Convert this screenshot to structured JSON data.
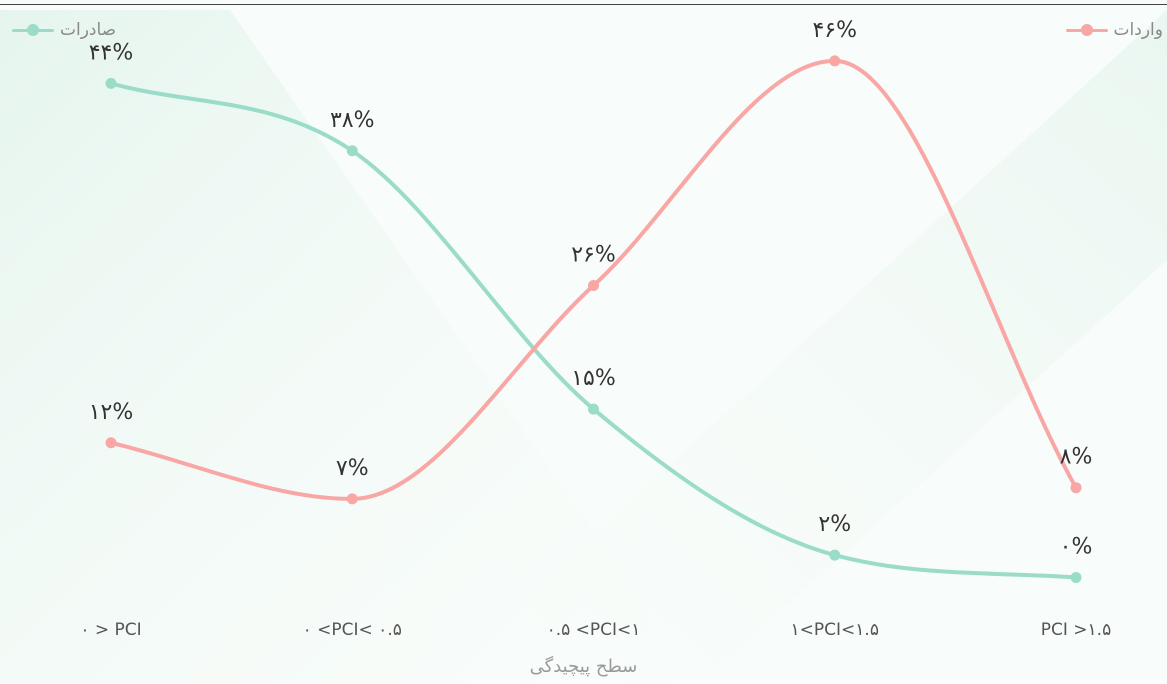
{
  "legend": {
    "exports": "صادرات",
    "imports": "واردات"
  },
  "colors": {
    "exports": "#9adcc8",
    "imports": "#f8a7a5"
  },
  "chart_data": {
    "type": "line",
    "xlabel": "سطح پیچیدگی",
    "ylabel": "",
    "categories": [
      "۰ > PCI",
      "۰ <PCI< ۰.۵",
      "۰.۵ <PCI<۱",
      "۱<PCI<۱.۵",
      "PCI >۱.۵"
    ],
    "ylim": [
      -2,
      50
    ],
    "grid": false,
    "legend_position": "top",
    "series": [
      {
        "key": "exports",
        "name": "صادرات",
        "values": [
          44,
          38,
          15,
          2,
          0
        ],
        "labels": [
          "۴۴%",
          "۳۸%",
          "۱۵%",
          "۲%",
          "۰%"
        ]
      },
      {
        "key": "imports",
        "name": "واردات",
        "values": [
          12,
          7,
          26,
          46,
          8
        ],
        "labels": [
          "۱۲%",
          "۷%",
          "۲۶%",
          "۴۶%",
          "۸%"
        ]
      }
    ]
  }
}
